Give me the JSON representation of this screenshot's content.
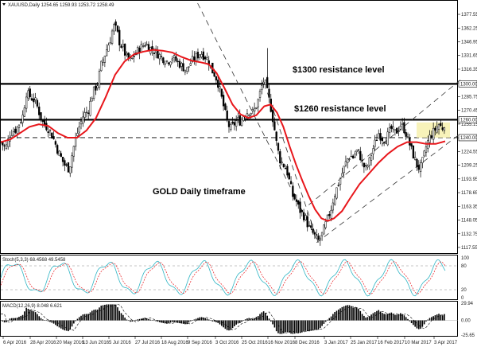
{
  "chart_data": {
    "type": "candlestick",
    "title": "XAUUSD,Daily 1254.65 1259.93 1253.72 1258.49",
    "main_panel": {
      "ylim": [
        1113.0,
        1390.0
      ],
      "y_ticks": [
        "1377.55",
        "1362.25",
        "1346.95",
        "1331.65",
        "1316.35",
        "1301.05",
        "1285.75",
        "1270.45",
        "1255.15",
        "1239.85",
        "1224.55",
        "1209.25",
        "1193.95",
        "1178.65",
        "1163.35",
        "1148.05",
        "1132.75",
        "1117.55"
      ],
      "price_tags": [
        "1300.00",
        "1260.00",
        "1240.00"
      ],
      "annotations": [
        "$1300 resistance level",
        "$1260 resistance level",
        "GOLD Daily timeframe"
      ],
      "horizontal_levels": [
        1300,
        1260,
        1240
      ],
      "close_path": [
        [
          0,
          1235
        ],
        [
          6,
          1228
        ],
        [
          12,
          1245
        ],
        [
          20,
          1250
        ],
        [
          28,
          1265
        ],
        [
          32,
          1290
        ],
        [
          38,
          1285
        ],
        [
          44,
          1280
        ],
        [
          52,
          1258
        ],
        [
          60,
          1250
        ],
        [
          66,
          1240
        ],
        [
          72,
          1225
        ],
        [
          80,
          1210
        ],
        [
          86,
          1205
        ],
        [
          92,
          1230
        ],
        [
          98,
          1250
        ],
        [
          104,
          1265
        ],
        [
          110,
          1270
        ],
        [
          116,
          1290
        ],
        [
          122,
          1300
        ],
        [
          126,
          1320
        ],
        [
          132,
          1335
        ],
        [
          138,
          1350
        ],
        [
          142,
          1365
        ],
        [
          146,
          1360
        ],
        [
          150,
          1345
        ],
        [
          154,
          1340
        ],
        [
          158,
          1330
        ],
        [
          164,
          1325
        ],
        [
          170,
          1335
        ],
        [
          176,
          1340
        ],
        [
          182,
          1345
        ],
        [
          188,
          1340
        ],
        [
          196,
          1335
        ],
        [
          202,
          1330
        ],
        [
          210,
          1325
        ],
        [
          216,
          1330
        ],
        [
          222,
          1325
        ],
        [
          228,
          1320
        ],
        [
          234,
          1315
        ],
        [
          240,
          1325
        ],
        [
          246,
          1330
        ],
        [
          252,
          1335
        ],
        [
          258,
          1330
        ],
        [
          262,
          1325
        ],
        [
          266,
          1315
        ],
        [
          270,
          1310
        ],
        [
          274,
          1300
        ],
        [
          278,
          1285
        ],
        [
          282,
          1270
        ],
        [
          286,
          1255
        ],
        [
          290,
          1250
        ],
        [
          294,
          1255
        ],
        [
          298,
          1260
        ],
        [
          302,
          1258
        ],
        [
          306,
          1265
        ],
        [
          312,
          1270
        ],
        [
          318,
          1268
        ],
        [
          324,
          1280
        ],
        [
          328,
          1295
        ],
        [
          332,
          1305
        ],
        [
          336,
          1290
        ],
        [
          340,
          1275
        ],
        [
          344,
          1255
        ],
        [
          348,
          1230
        ],
        [
          352,
          1215
        ],
        [
          356,
          1210
        ],
        [
          360,
          1205
        ],
        [
          364,
          1190
        ],
        [
          368,
          1175
        ],
        [
          372,
          1170
        ],
        [
          376,
          1160
        ],
        [
          380,
          1155
        ],
        [
          384,
          1150
        ],
        [
          388,
          1140
        ],
        [
          392,
          1135
        ],
        [
          396,
          1130
        ],
        [
          400,
          1125
        ],
        [
          404,
          1130
        ],
        [
          408,
          1140
        ],
        [
          412,
          1150
        ],
        [
          416,
          1160
        ],
        [
          420,
          1175
        ],
        [
          424,
          1185
        ],
        [
          428,
          1195
        ],
        [
          432,
          1205
        ],
        [
          436,
          1215
        ],
        [
          440,
          1220
        ],
        [
          444,
          1218
        ],
        [
          448,
          1225
        ],
        [
          452,
          1222
        ],
        [
          456,
          1210
        ],
        [
          460,
          1205
        ],
        [
          464,
          1212
        ],
        [
          468,
          1225
        ],
        [
          472,
          1235
        ],
        [
          476,
          1245
        ],
        [
          480,
          1240
        ],
        [
          484,
          1238
        ],
        [
          488,
          1243
        ],
        [
          492,
          1250
        ],
        [
          496,
          1245
        ],
        [
          500,
          1248
        ],
        [
          504,
          1255
        ],
        [
          508,
          1250
        ],
        [
          512,
          1242
        ],
        [
          516,
          1230
        ],
        [
          520,
          1220
        ],
        [
          524,
          1210
        ],
        [
          528,
          1205
        ],
        [
          532,
          1215
        ],
        [
          536,
          1230
        ],
        [
          540,
          1240
        ],
        [
          544,
          1245
        ],
        [
          548,
          1250
        ],
        [
          552,
          1255
        ],
        [
          556,
          1250
        ],
        [
          560,
          1258
        ]
      ],
      "sma_path": [
        [
          0,
          1235
        ],
        [
          12,
          1238
        ],
        [
          24,
          1245
        ],
        [
          36,
          1252
        ],
        [
          48,
          1255
        ],
        [
          60,
          1253
        ],
        [
          72,
          1245
        ],
        [
          84,
          1240
        ],
        [
          96,
          1240
        ],
        [
          108,
          1248
        ],
        [
          120,
          1262
        ],
        [
          132,
          1285
        ],
        [
          144,
          1310
        ],
        [
          156,
          1325
        ],
        [
          168,
          1333
        ],
        [
          180,
          1336
        ],
        [
          192,
          1338
        ],
        [
          204,
          1337
        ],
        [
          216,
          1335
        ],
        [
          228,
          1330
        ],
        [
          240,
          1326
        ],
        [
          252,
          1324
        ],
        [
          262,
          1322
        ],
        [
          272,
          1312
        ],
        [
          282,
          1295
        ],
        [
          292,
          1277
        ],
        [
          302,
          1266
        ],
        [
          312,
          1262
        ],
        [
          322,
          1265
        ],
        [
          332,
          1275
        ],
        [
          340,
          1277
        ],
        [
          348,
          1268
        ],
        [
          356,
          1252
        ],
        [
          364,
          1230
        ],
        [
          372,
          1210
        ],
        [
          380,
          1192
        ],
        [
          388,
          1175
        ],
        [
          396,
          1160
        ],
        [
          404,
          1150
        ],
        [
          412,
          1147
        ],
        [
          420,
          1150
        ],
        [
          430,
          1158
        ],
        [
          440,
          1172
        ],
        [
          452,
          1188
        ],
        [
          464,
          1200
        ],
        [
          476,
          1212
        ],
        [
          488,
          1222
        ],
        [
          500,
          1230
        ],
        [
          512,
          1235
        ],
        [
          524,
          1235
        ],
        [
          536,
          1233
        ],
        [
          548,
          1233
        ],
        [
          560,
          1236
        ]
      ],
      "channel_lines": [
        {
          "from": [
            248,
            1390
          ],
          "to": [
            400,
            1123
          ]
        },
        {
          "from": [
            336,
            1290
          ],
          "to": [
            400,
            1123
          ]
        },
        {
          "from": [
            388,
            1165
          ],
          "to": [
            580,
            1305
          ]
        },
        {
          "from": [
            398,
            1123
          ],
          "to": [
            580,
            1245
          ]
        }
      ]
    },
    "stoch_panel": {
      "label": "Stoch(5,3,3) 68.4568 49.5458",
      "ylim": [
        0,
        100
      ],
      "y_ticks": [
        "100",
        "80",
        "20",
        "0"
      ],
      "levels": [
        80,
        20
      ]
    },
    "macd_panel": {
      "label": "MACD(12,26,9) 8.048 6.621",
      "y_ticks": [
        "29.94",
        "0.00",
        "-25.65"
      ],
      "ylim": [
        -25.65,
        29.94
      ]
    },
    "x_ticks": [
      "6 Apr 2016",
      "28 Apr 2016",
      "20 May 2016",
      "13 Jun 2016",
      "5 Jul 2016",
      "27 Jul 2016",
      "18 Aug 2016",
      "9 Sep 2016",
      "3 Oct 2016",
      "25 Oct 2016",
      "16 Nov 2016",
      "8 Dec 2016",
      "3 Jan 2017",
      "25 Jan 2017",
      "16 Feb 2017",
      "10 Mar 2017",
      "3 Apr 2017"
    ],
    "colors": {
      "candle": "#000000",
      "sma": "#e8161b",
      "stoch_main": "#2fb5c4",
      "stoch_signal": "#e8161b",
      "macd_hist": "#000000",
      "grid": "#888888",
      "highlight": "#f6f0a9"
    }
  }
}
